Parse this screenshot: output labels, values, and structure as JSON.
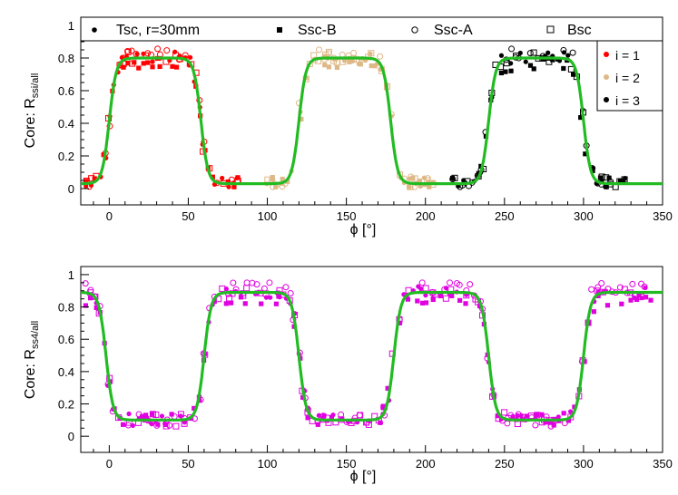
{
  "chart_data": [
    {
      "type": "scatter",
      "xlabel": "ϕ [°]",
      "ylabel_main": "Core: R",
      "ylabel_sub": "ssi/all",
      "xlim": [
        -18,
        350
      ],
      "ylim": [
        -0.1,
        1.05
      ],
      "xticks": [
        0,
        50,
        100,
        150,
        200,
        250,
        300,
        350
      ],
      "yticks": [
        0,
        0.2,
        0.4,
        0.6,
        0.8,
        1
      ],
      "yticklabels": [
        "0",
        "0.2",
        "0.4",
        "0.6",
        "0.8",
        "1"
      ],
      "legend_top": [
        "Tsc, r=30mm",
        "Ssc-B",
        "Ssc-A",
        "Bsc"
      ],
      "legend_side": [
        "i = 1",
        "i = 2",
        "i = 3"
      ],
      "colors": {
        "i1": "#ff0000",
        "i2": "#deb887",
        "i3": "#000000",
        "fit": "#22bb22"
      },
      "fit_model": {
        "low": 0.03,
        "high": 0.8,
        "rise_edges": [
          0,
          120,
          240
        ],
        "fall_edges": [
          58,
          178,
          300
        ],
        "width": 2.2
      },
      "series": [
        {
          "name": "i = 1",
          "x_range": [
            -15,
            85
          ],
          "low": 0.04,
          "high": 0.79
        },
        {
          "name": "i = 2",
          "x_range": [
            100,
            205
          ],
          "low": 0.04,
          "high": 0.78
        },
        {
          "name": "i = 3",
          "x_range": [
            218,
            327
          ],
          "low": 0.04,
          "high": 0.8
        }
      ]
    },
    {
      "type": "scatter",
      "xlabel": "ϕ [°]",
      "ylabel_main": "Core: R",
      "ylabel_sub": "ss4/all",
      "xlim": [
        -18,
        350
      ],
      "ylim": [
        -0.1,
        1.05
      ],
      "xticks": [
        0,
        50,
        100,
        150,
        200,
        250,
        300,
        350
      ],
      "yticks": [
        0,
        0.2,
        0.4,
        0.6,
        0.8,
        1
      ],
      "yticklabels": [
        "0",
        "0.2",
        "0.4",
        "0.6",
        "0.8",
        "1"
      ],
      "colors": {
        "points": "#e000e0",
        "fit": "#22bb22"
      },
      "fit_model": {
        "low": 0.1,
        "high": 0.89,
        "rise_edges": [
          60,
          180,
          300
        ],
        "fall_edges": [
          -2,
          120,
          240
        ],
        "width": 2.2
      },
      "series": [
        {
          "name": "magenta",
          "x_range": [
            -15,
            343
          ],
          "low": 0.11,
          "high": 0.87
        }
      ]
    }
  ]
}
